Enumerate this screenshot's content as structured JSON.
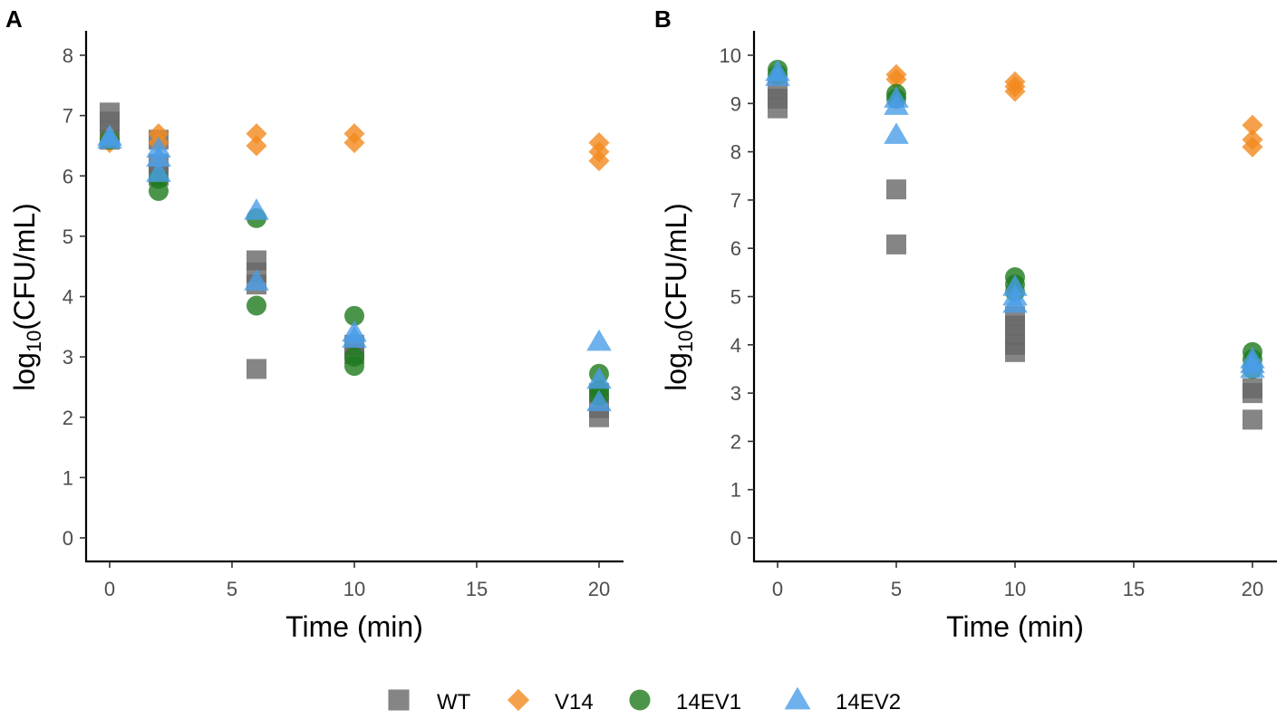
{
  "chart_data": [
    {
      "panel": "A",
      "type": "scatter",
      "xlabel": "Time (min)",
      "ylabel_main": "log",
      "ylabel_sub": "10",
      "ylabel_rest": "(CFU/mL)",
      "xlim": [
        -1,
        21
      ],
      "ylim": [
        -0.5,
        8.4
      ],
      "xticks": [
        0,
        5,
        10,
        15,
        20
      ],
      "yticks": [
        0,
        1,
        2,
        3,
        4,
        5,
        6,
        7,
        8
      ],
      "series": [
        {
          "name": "WT",
          "points": [
            [
              0,
              7.05
            ],
            [
              0,
              6.9
            ],
            [
              0,
              6.75
            ],
            [
              0,
              6.6
            ],
            [
              2,
              6.6
            ],
            [
              2,
              6.2
            ],
            [
              2,
              6.0
            ],
            [
              6,
              4.6
            ],
            [
              6,
              4.4
            ],
            [
              6,
              4.2
            ],
            [
              6,
              2.8
            ],
            [
              10,
              3.2
            ],
            [
              10,
              3.05
            ],
            [
              20,
              2.4
            ],
            [
              20,
              2.15
            ],
            [
              20,
              2.0
            ]
          ]
        },
        {
          "name": "V14",
          "points": [
            [
              0,
              6.65
            ],
            [
              0,
              6.55
            ],
            [
              2,
              6.7
            ],
            [
              2,
              6.55
            ],
            [
              6,
              6.7
            ],
            [
              6,
              6.5
            ],
            [
              10,
              6.7
            ],
            [
              10,
              6.55
            ],
            [
              20,
              6.55
            ],
            [
              20,
              6.4
            ],
            [
              20,
              6.25
            ]
          ]
        },
        {
          "name": "14EV1",
          "points": [
            [
              0,
              6.6
            ],
            [
              2,
              5.95
            ],
            [
              2,
              5.75
            ],
            [
              6,
              5.3
            ],
            [
              6,
              3.85
            ],
            [
              10,
              3.68
            ],
            [
              10,
              3.0
            ],
            [
              10,
              2.85
            ],
            [
              20,
              2.72
            ],
            [
              20,
              2.45
            ],
            [
              20,
              2.35
            ]
          ]
        },
        {
          "name": "14EV2",
          "points": [
            [
              0,
              6.65
            ],
            [
              0,
              6.6
            ],
            [
              2,
              6.45
            ],
            [
              2,
              6.3
            ],
            [
              2,
              6.05
            ],
            [
              6,
              5.42
            ],
            [
              6,
              4.25
            ],
            [
              10,
              3.4
            ],
            [
              10,
              3.3
            ],
            [
              20,
              3.25
            ],
            [
              20,
              2.62
            ],
            [
              20,
              2.25
            ]
          ]
        }
      ]
    },
    {
      "panel": "B",
      "type": "scatter",
      "xlabel": "Time (min)",
      "ylabel_main": "log",
      "ylabel_sub": "10",
      "ylabel_rest": "(CFU/mL)",
      "xlim": [
        -1,
        21
      ],
      "ylim": [
        -0.5,
        10.5
      ],
      "xticks": [
        0,
        5,
        10,
        15,
        20
      ],
      "yticks": [
        0,
        1,
        2,
        3,
        4,
        5,
        6,
        7,
        8,
        9,
        10
      ],
      "series": [
        {
          "name": "WT",
          "points": [
            [
              0,
              9.3
            ],
            [
              0,
              9.1
            ],
            [
              0,
              8.9
            ],
            [
              5,
              7.22
            ],
            [
              5,
              6.08
            ],
            [
              10,
              4.6
            ],
            [
              10,
              4.4
            ],
            [
              10,
              4.2
            ],
            [
              10,
              4.0
            ],
            [
              10,
              3.85
            ],
            [
              20,
              3.1
            ],
            [
              20,
              3.0
            ],
            [
              20,
              2.45
            ]
          ]
        },
        {
          "name": "V14",
          "points": [
            [
              0,
              9.6
            ],
            [
              5,
              9.6
            ],
            [
              5,
              9.5
            ],
            [
              10,
              9.45
            ],
            [
              10,
              9.35
            ],
            [
              10,
              9.25
            ],
            [
              20,
              8.55
            ],
            [
              20,
              8.25
            ],
            [
              20,
              8.1
            ]
          ]
        },
        {
          "name": "14EV1",
          "points": [
            [
              0,
              9.7
            ],
            [
              0,
              9.6
            ],
            [
              5,
              9.2
            ],
            [
              5,
              9.1
            ],
            [
              10,
              5.4
            ],
            [
              10,
              5.25
            ],
            [
              10,
              5.1
            ],
            [
              20,
              3.85
            ],
            [
              20,
              3.7
            ],
            [
              20,
              3.5
            ]
          ]
        },
        {
          "name": "14EV2",
          "points": [
            [
              0,
              9.65
            ],
            [
              0,
              9.55
            ],
            [
              5,
              9.1
            ],
            [
              5,
              8.95
            ],
            [
              5,
              8.35
            ],
            [
              10,
              5.2
            ],
            [
              10,
              5.0
            ],
            [
              10,
              4.85
            ],
            [
              20,
              3.7
            ],
            [
              20,
              3.6
            ],
            [
              20,
              3.5
            ]
          ]
        }
      ]
    }
  ],
  "legend": [
    {
      "name": "WT",
      "shape": "square",
      "color": "#666666"
    },
    {
      "name": "V14",
      "shape": "diamond",
      "color": "#F28A1E"
    },
    {
      "name": "14EV1",
      "shape": "circle",
      "color": "#1E7A1E"
    },
    {
      "name": "14EV2",
      "shape": "triangle",
      "color": "#4A9EE8"
    }
  ],
  "colors": {
    "WT": "#666666",
    "V14": "#F28A1E",
    "14EV1": "#1E7A1E",
    "14EV2": "#4A9EE8"
  },
  "marker_opacity": 0.8
}
